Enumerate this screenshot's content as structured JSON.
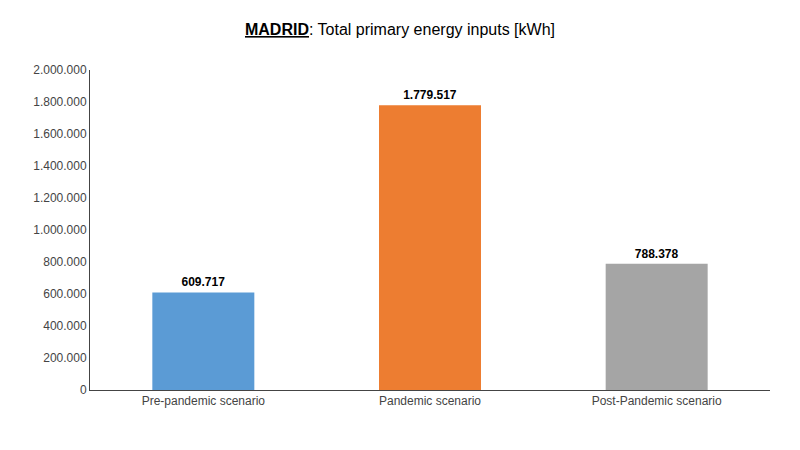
{
  "chart_data": {
    "type": "bar",
    "title": "MADRID: Total primary energy inputs [kWh]",
    "categories": [
      "Pre-pandemic scenario",
      "Pandemic scenario",
      "Post-Pandemic scenario"
    ],
    "values": [
      609717,
      1779517,
      788378
    ],
    "value_labels": [
      "609.717",
      "1.779.517",
      "788.378"
    ],
    "colors": [
      "#5B9BD5",
      "#ED7D31",
      "#A5A5A5"
    ],
    "data_labels": true,
    "ylim": [
      0,
      2000000
    ],
    "yticks": [
      0,
      {
        "value": 200000,
        "label": "200.000"
      },
      {
        "value": 400000,
        "label": "400.000"
      },
      {
        "value": 600000,
        "label": "600.000"
      },
      {
        "value": 800000,
        "label": "800.000"
      },
      {
        "value": 1000000,
        "label": "1.000.000"
      },
      {
        "value": 1200000,
        "label": "1.200.000"
      },
      {
        "value": 1400000,
        "label": "1.400.000"
      },
      {
        "value": 1600000,
        "label": "1.600.000"
      },
      {
        "value": 1800000,
        "label": "1.800.000"
      },
      {
        "value": 2000000,
        "label": "2.000.000"
      }
    ],
    "grid": false
  }
}
